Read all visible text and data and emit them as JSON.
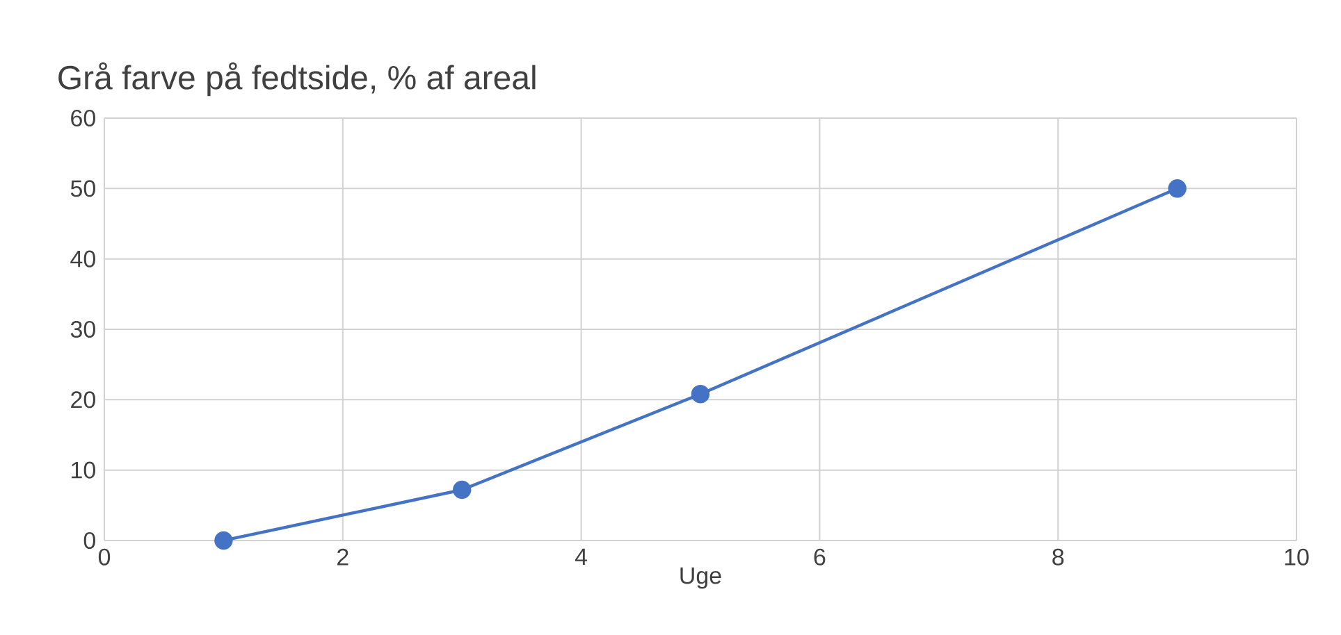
{
  "chart_data": {
    "type": "line",
    "title": "Grå farve  på fedtside, % af areal",
    "xlabel": "Uge",
    "x": [
      1,
      3,
      5,
      9
    ],
    "series": [
      {
        "color": "#4472c4",
        "values": [
          0,
          7.2,
          20.8,
          50
        ]
      }
    ],
    "xlim": [
      0,
      10
    ],
    "xticks": [
      0,
      2,
      4,
      6,
      8,
      10
    ],
    "ylim": [
      0,
      60
    ],
    "yticks": [
      0,
      10,
      20,
      30,
      40,
      50,
      60
    ],
    "grid": true,
    "marker": "circle",
    "line_style": "solid"
  }
}
